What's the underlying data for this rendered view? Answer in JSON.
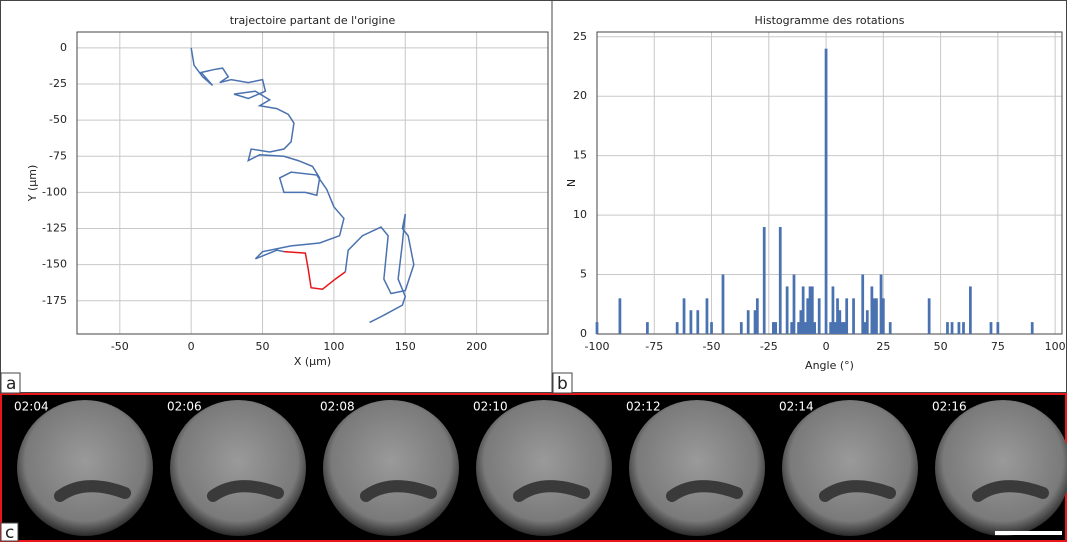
{
  "chart_data": [
    {
      "type": "line",
      "title": "trajectoire partant de l'origine",
      "x_label": "X (µm)",
      "y_label": "Y (µm)",
      "xlim": [
        -80,
        250
      ],
      "ylim": [
        -198,
        11
      ],
      "xticks": [
        -50,
        0,
        50,
        100,
        150,
        200
      ],
      "yticks": [
        0,
        -25,
        -50,
        -75,
        -100,
        -125,
        -150,
        -175
      ],
      "grid": true,
      "series": [
        {
          "color": "#4a72b0",
          "x": [
            0,
            2,
            8,
            15,
            7,
            16,
            22,
            26,
            20,
            28,
            40,
            50,
            52,
            40,
            30,
            45,
            55,
            48,
            60,
            68,
            72,
            70,
            65,
            55,
            42,
            40,
            48,
            65,
            75,
            85,
            90,
            88,
            80,
            65,
            62,
            70,
            88,
            95,
            100,
            107,
            104,
            90,
            70,
            50,
            45,
            60,
            65
          ],
          "values": [
            0,
            -12,
            -20,
            -26,
            -17,
            -15,
            -14,
            -20,
            -24,
            -22,
            -24,
            -22,
            -30,
            -35,
            -32,
            -30,
            -36,
            -40,
            -42,
            -46,
            -52,
            -65,
            -70,
            -72,
            -70,
            -78,
            -74,
            -75,
            -78,
            -82,
            -90,
            -102,
            -100,
            -100,
            -90,
            -86,
            -88,
            -98,
            -110,
            -118,
            -130,
            -135,
            -137,
            -141,
            -146,
            -140,
            -141
          ]
        },
        {
          "color": "#e8161b",
          "x": [
            65,
            80,
            82,
            84,
            92,
            101,
            108
          ],
          "values": [
            -141,
            -142,
            -153,
            -166,
            -167,
            -160,
            -155
          ]
        },
        {
          "color": "#4a72b0",
          "x": [
            108,
            110,
            120,
            133,
            138,
            135,
            140,
            150,
            156,
            152,
            148,
            150,
            148,
            145,
            150,
            148,
            135,
            125
          ],
          "values": [
            -155,
            -140,
            -130,
            -124,
            -130,
            -160,
            -170,
            -168,
            -150,
            -130,
            -125,
            -115,
            -135,
            -160,
            -172,
            -178,
            -185,
            -190
          ]
        }
      ]
    },
    {
      "type": "bar",
      "title": "Histogramme des rotations",
      "x_label": "Angle (°)",
      "y_label": "N",
      "xlim": [
        -100,
        103
      ],
      "ylim": [
        0,
        25.4
      ],
      "xticks": [
        -100,
        -75,
        -50,
        -25,
        0,
        25,
        50,
        75,
        100
      ],
      "yticks": [
        0,
        5,
        10,
        15,
        20,
        25
      ],
      "grid": true,
      "color": "#4a72b0",
      "x": [
        -100,
        -90,
        -78,
        -65,
        -62,
        -59,
        -56,
        -52,
        -50,
        -45,
        -37,
        -34,
        -31,
        -30,
        -27,
        -23,
        -22,
        -20,
        -17,
        -15,
        -14,
        -12,
        -11,
        -10,
        -9,
        -8,
        -7,
        -6,
        -5,
        -3,
        0,
        2,
        3,
        4,
        5,
        6,
        7,
        8,
        9,
        12,
        16,
        17,
        18,
        20,
        21,
        22,
        24,
        25,
        28,
        45,
        53,
        55,
        58,
        60,
        63,
        72,
        75,
        90
      ],
      "values": [
        1,
        3,
        1,
        1,
        3,
        2,
        2,
        3,
        1,
        5,
        1,
        2,
        2,
        3,
        9,
        1,
        1,
        9,
        4,
        1,
        5,
        1,
        2,
        4,
        1,
        3,
        4,
        4,
        1,
        3,
        24,
        1,
        4,
        1,
        3,
        2,
        1,
        1,
        3,
        3,
        5,
        1,
        2,
        4,
        3,
        3,
        5,
        3,
        1,
        3,
        1,
        1,
        1,
        1,
        4,
        1,
        1,
        1
      ]
    }
  ],
  "panel_labels": [
    "a",
    "b",
    "c"
  ],
  "timestamps": [
    "02:04",
    "02:06",
    "02:08",
    "02:10",
    "02:12",
    "02:14",
    "02:16"
  ]
}
